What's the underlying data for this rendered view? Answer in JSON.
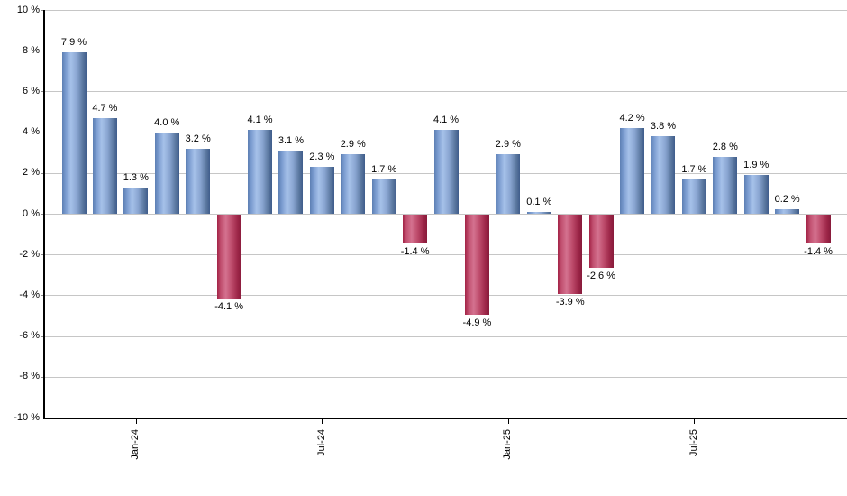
{
  "chart_data": {
    "type": "bar",
    "title": "",
    "xlabel": "",
    "ylabel": "",
    "unit": "%",
    "ylim": [
      -10,
      10
    ],
    "y_tick_step": 2,
    "grid": true,
    "legend": "none",
    "y_ticks": [
      {
        "value": 10,
        "label": "10 %"
      },
      {
        "value": 8,
        "label": "8 %"
      },
      {
        "value": 6,
        "label": "6 %"
      },
      {
        "value": 4,
        "label": "4 %"
      },
      {
        "value": 2,
        "label": "2 %"
      },
      {
        "value": 0,
        "label": "0 %"
      },
      {
        "value": -2,
        "label": "-2 %"
      },
      {
        "value": -4,
        "label": "-4 %"
      },
      {
        "value": -6,
        "label": "-6 %"
      },
      {
        "value": -8,
        "label": "-8 %"
      },
      {
        "value": -10,
        "label": "-10 %"
      }
    ],
    "values": [
      7.9,
      4.7,
      1.3,
      4.0,
      3.2,
      -4.1,
      4.1,
      3.1,
      2.3,
      2.9,
      1.7,
      -1.4,
      4.1,
      -4.9,
      2.9,
      0.1,
      -3.9,
      -2.6,
      4.2,
      3.8,
      1.7,
      2.8,
      1.9,
      0.2,
      -1.4
    ],
    "bar_labels": [
      "7.9 %",
      "4.7 %",
      "1.3 %",
      "4.0 %",
      "3.2 %",
      "-4.1 %",
      "4.1 %",
      "3.1 %",
      "2.3 %",
      "2.9 %",
      "1.7 %",
      "-1.4 %",
      "4.1 %",
      "-4.9 %",
      "2.9 %",
      "0.1 %",
      "-3.9 %",
      "-2.6 %",
      "4.2 %",
      "3.8 %",
      "1.7 %",
      "2.8 %",
      "1.9 %",
      "0.2 %",
      "-1.4 %"
    ],
    "x_ticks": [
      {
        "label": "Jan-24",
        "bar_index": 2
      },
      {
        "label": "Jul-24",
        "bar_index": 8
      },
      {
        "label": "Jan-25",
        "bar_index": 14
      },
      {
        "label": "Jul-25",
        "bar_index": 20
      }
    ],
    "colors": {
      "positive_edge": "#5c7fb3",
      "positive_highlight": "#a6c1e9",
      "positive_dark": "#3f5c8b",
      "negative_edge": "#a22346",
      "negative_highlight": "#d4728f",
      "negative_dark": "#871b3b",
      "gridline": "#c6c6c6",
      "axis": "#000000",
      "text": "#000000",
      "background": "#ffffff"
    }
  }
}
